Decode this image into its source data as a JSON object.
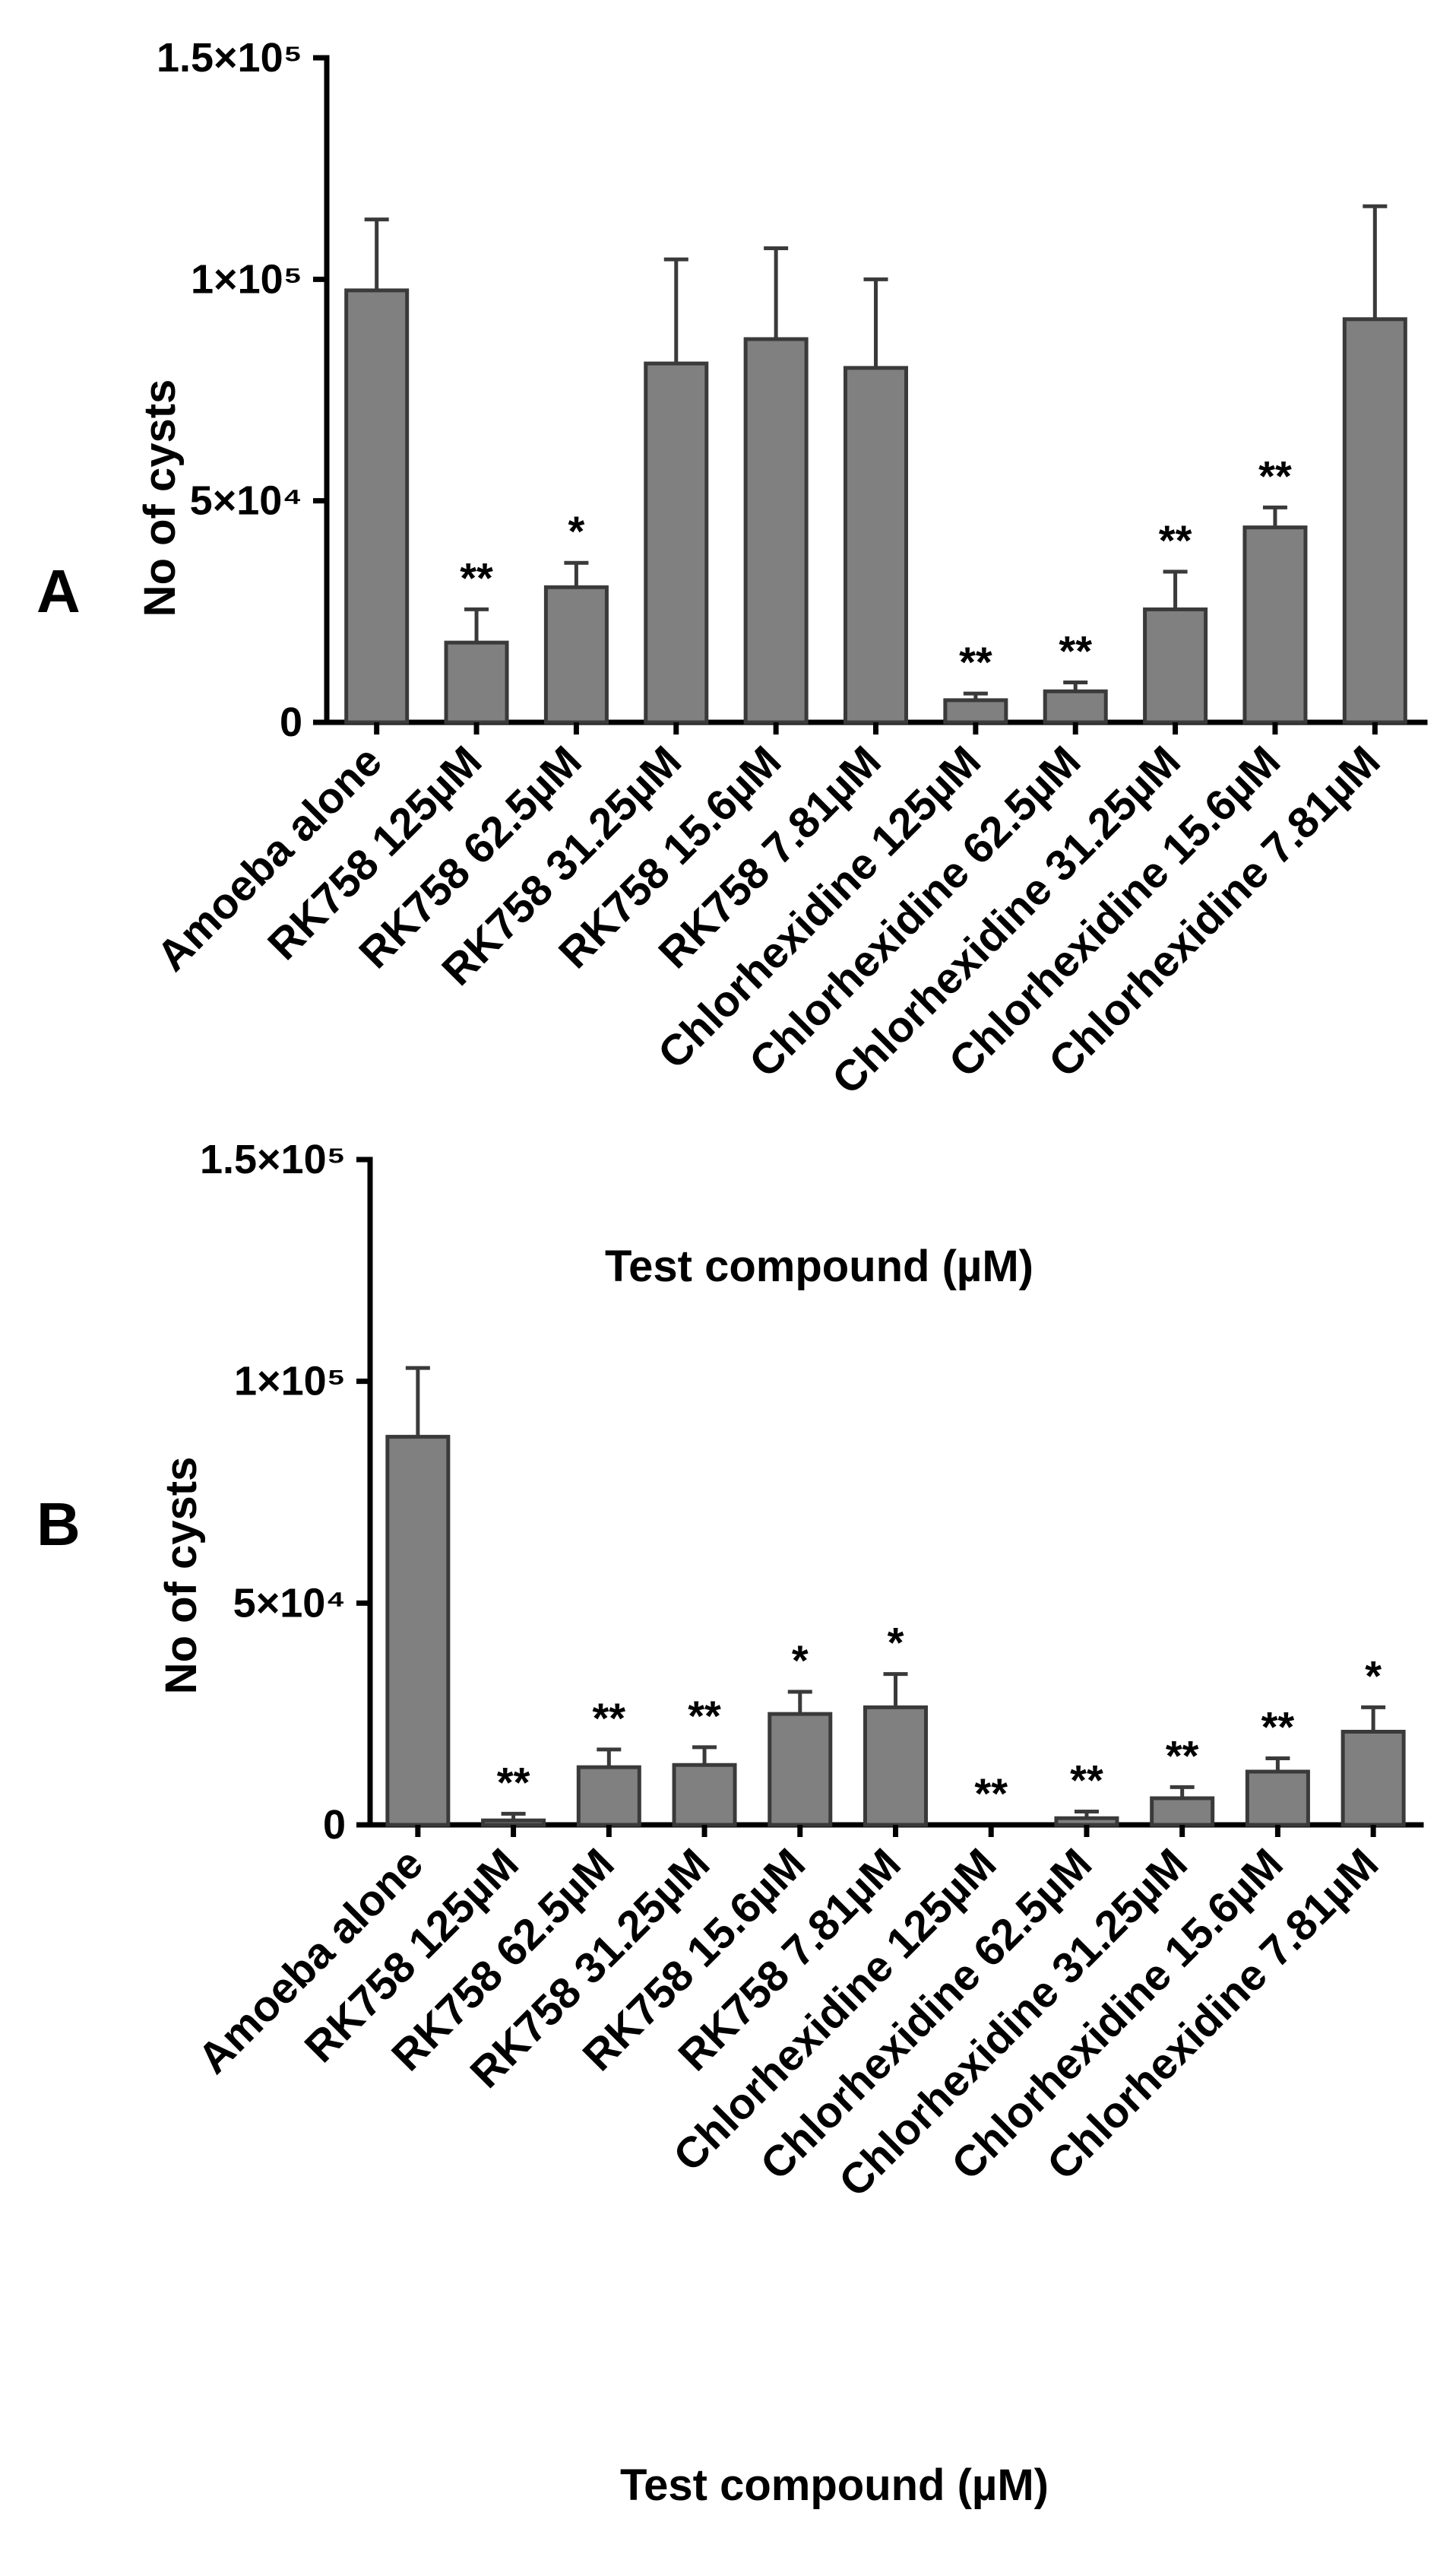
{
  "chart_data": [
    {
      "type": "bar",
      "panel": "A",
      "ylabel": "No of cysts",
      "xlabel": "Test compound (µM)",
      "ylim": [
        0,
        150000
      ],
      "yticks": [
        {
          "value": 0,
          "label": "0"
        },
        {
          "value": 50000,
          "label": "5×10⁴"
        },
        {
          "value": 100000,
          "label": "1×10⁵"
        },
        {
          "value": 150000,
          "label": "1.5×10⁵"
        }
      ],
      "categories": [
        "Amoeba alone",
        "RK758 125µM",
        "RK758 62.5µM",
        "RK758 31.25µM",
        "RK758 15.6µM",
        "RK758 7.81µM",
        "Chlorhexidine 125µM",
        "Chlorhexidine 62.5µM",
        "Chlorhexidine 31.25µM",
        "Chlorhexidine 15.6µM",
        "Chlorhexidine 7.81µM"
      ],
      "values": [
        97500,
        18000,
        30500,
        81000,
        86500,
        80000,
        5000,
        7000,
        25500,
        44000,
        91000
      ],
      "errors": [
        16000,
        7500,
        5500,
        23500,
        20500,
        20000,
        1500,
        2000,
        8500,
        4500,
        25500
      ],
      "significance": [
        "",
        "**",
        "*",
        "",
        "",
        "",
        "**",
        "**",
        "**",
        "**",
        ""
      ],
      "colors": {
        "bar": "#808080",
        "edge": "#3a3a3a"
      }
    },
    {
      "type": "bar",
      "panel": "B",
      "ylabel": "No of cysts",
      "xlabel": "Test compound (µM)",
      "ylim": [
        0,
        150000
      ],
      "yticks": [
        {
          "value": 0,
          "label": "0"
        },
        {
          "value": 50000,
          "label": "5×10⁴"
        },
        {
          "value": 100000,
          "label": "1×10⁵"
        },
        {
          "value": 150000,
          "label": "1.5×10⁵"
        }
      ],
      "categories": [
        "Amoeba alone",
        "RK758 125µM",
        "RK758 62.5µM",
        "RK758 31.25µM",
        "RK758 15.6µM",
        "RK758 7.81µM",
        "Chlorhexidine 125µM",
        "Chlorhexidine 62.5µM",
        "Chlorhexidine 31.25µM",
        "Chlorhexidine 15.6µM",
        "Chlorhexidine 7.81µM"
      ],
      "values": [
        87500,
        1000,
        13000,
        13500,
        25000,
        26500,
        0,
        1500,
        6000,
        12000,
        21000
      ],
      "errors": [
        15500,
        1500,
        4000,
        4000,
        5000,
        7500,
        0,
        1500,
        2500,
        3000,
        5500
      ],
      "significance": [
        "",
        "**",
        "**",
        "**",
        "*",
        "*",
        "**",
        "**",
        "**",
        "**",
        "*"
      ],
      "colors": {
        "bar": "#808080",
        "edge": "#3a3a3a"
      }
    }
  ]
}
